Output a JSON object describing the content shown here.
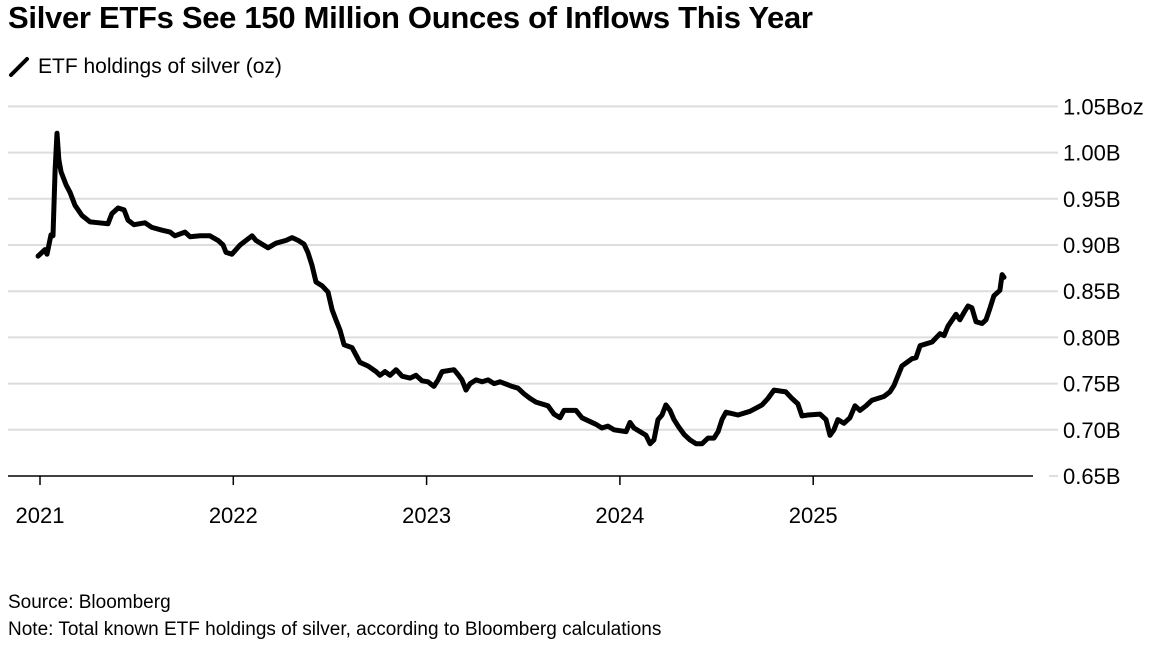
{
  "title": "Silver ETFs See 150 Million Ounces of Inflows This Year",
  "legend": {
    "label": "ETF holdings of silver (oz)",
    "icon": "line-swatch-icon"
  },
  "source": "Source: Bloomberg",
  "note": "Note: Total known ETF holdings of silver, according to Bloomberg calculations",
  "chart_data": {
    "type": "line",
    "title": "Silver ETFs See 150 Million Ounces of Inflows This Year",
    "xlabel": "",
    "ylabel": "",
    "x_unit": "year",
    "xlim": [
      2020.98,
      2026.14
    ],
    "ylim": [
      0.65,
      1.05
    ],
    "x_ticks": [
      2021,
      2022,
      2023,
      2024,
      2025
    ],
    "x_tick_labels": [
      "2021",
      "2022",
      "2023",
      "2024",
      "2025"
    ],
    "y_ticks": [
      0.65,
      0.7,
      0.75,
      0.8,
      0.85,
      0.9,
      0.95,
      1.0,
      1.05
    ],
    "y_tick_labels": [
      "0.65B",
      "0.70B",
      "0.75B",
      "0.80B",
      "0.85B",
      "0.90B",
      "0.95B",
      "1.00B",
      "1.05Boz"
    ],
    "grid": "horizontal",
    "legend_position": "top-left",
    "line_color": "#000000",
    "grid_color": "#dddddd",
    "series": [
      {
        "name": "ETF holdings of silver (oz)",
        "unit": "billion oz",
        "points": [
          [
            2020.99,
            0.888
          ],
          [
            2021.026,
            0.895
          ],
          [
            2021.036,
            0.89
          ],
          [
            2021.057,
            0.911
          ],
          [
            2021.067,
            0.91
          ],
          [
            2021.078,
            0.981
          ],
          [
            2021.088,
            1.021
          ],
          [
            2021.098,
            0.992
          ],
          [
            2021.109,
            0.979
          ],
          [
            2021.135,
            0.965
          ],
          [
            2021.155,
            0.957
          ],
          [
            2021.181,
            0.943
          ],
          [
            2021.217,
            0.932
          ],
          [
            2021.259,
            0.925
          ],
          [
            2021.305,
            0.924
          ],
          [
            2021.352,
            0.923
          ],
          [
            2021.372,
            0.934
          ],
          [
            2021.404,
            0.94
          ],
          [
            2021.435,
            0.938
          ],
          [
            2021.455,
            0.927
          ],
          [
            2021.486,
            0.922
          ],
          [
            2021.543,
            0.924
          ],
          [
            2021.579,
            0.919
          ],
          [
            2021.631,
            0.916
          ],
          [
            2021.673,
            0.914
          ],
          [
            2021.698,
            0.91
          ],
          [
            2021.75,
            0.914
          ],
          [
            2021.776,
            0.909
          ],
          [
            2021.828,
            0.91
          ],
          [
            2021.879,
            0.91
          ],
          [
            2021.921,
            0.905
          ],
          [
            2021.947,
            0.9
          ],
          [
            2021.962,
            0.892
          ],
          [
            2021.993,
            0.89
          ],
          [
            2022.035,
            0.9
          ],
          [
            2022.066,
            0.905
          ],
          [
            2022.097,
            0.91
          ],
          [
            2022.117,
            0.905
          ],
          [
            2022.148,
            0.901
          ],
          [
            2022.18,
            0.897
          ],
          [
            2022.221,
            0.902
          ],
          [
            2022.273,
            0.905
          ],
          [
            2022.304,
            0.908
          ],
          [
            2022.335,
            0.905
          ],
          [
            2022.366,
            0.901
          ],
          [
            2022.386,
            0.892
          ],
          [
            2022.407,
            0.878
          ],
          [
            2022.428,
            0.86
          ],
          [
            2022.459,
            0.856
          ],
          [
            2022.49,
            0.849
          ],
          [
            2022.511,
            0.83
          ],
          [
            2022.531,
            0.819
          ],
          [
            2022.552,
            0.808
          ],
          [
            2022.573,
            0.792
          ],
          [
            2022.614,
            0.789
          ],
          [
            2022.635,
            0.781
          ],
          [
            2022.655,
            0.773
          ],
          [
            2022.697,
            0.769
          ],
          [
            2022.738,
            0.763
          ],
          [
            2022.759,
            0.759
          ],
          [
            2022.785,
            0.763
          ],
          [
            2022.811,
            0.759
          ],
          [
            2022.842,
            0.765
          ],
          [
            2022.873,
            0.758
          ],
          [
            2022.914,
            0.756
          ],
          [
            2022.945,
            0.759
          ],
          [
            2022.976,
            0.753
          ],
          [
            2023.007,
            0.752
          ],
          [
            2023.038,
            0.747
          ],
          [
            2023.059,
            0.754
          ],
          [
            2023.08,
            0.763
          ],
          [
            2023.142,
            0.765
          ],
          [
            2023.162,
            0.76
          ],
          [
            2023.183,
            0.754
          ],
          [
            2023.204,
            0.743
          ],
          [
            2023.225,
            0.75
          ],
          [
            2023.256,
            0.754
          ],
          [
            2023.287,
            0.752
          ],
          [
            2023.318,
            0.754
          ],
          [
            2023.349,
            0.75
          ],
          [
            2023.38,
            0.752
          ],
          [
            2023.442,
            0.747
          ],
          [
            2023.473,
            0.745
          ],
          [
            2023.504,
            0.739
          ],
          [
            2023.535,
            0.734
          ],
          [
            2023.566,
            0.73
          ],
          [
            2023.628,
            0.726
          ],
          [
            2023.659,
            0.717
          ],
          [
            2023.69,
            0.713
          ],
          [
            2023.711,
            0.721
          ],
          [
            2023.773,
            0.721
          ],
          [
            2023.804,
            0.713
          ],
          [
            2023.876,
            0.706
          ],
          [
            2023.907,
            0.702
          ],
          [
            2023.938,
            0.704
          ],
          [
            2023.969,
            0.7
          ],
          [
            2024.032,
            0.698
          ],
          [
            2024.052,
            0.708
          ],
          [
            2024.073,
            0.702
          ],
          [
            2024.135,
            0.694
          ],
          [
            2024.156,
            0.685
          ],
          [
            2024.176,
            0.689
          ],
          [
            2024.197,
            0.711
          ],
          [
            2024.218,
            0.716
          ],
          [
            2024.238,
            0.727
          ],
          [
            2024.259,
            0.721
          ],
          [
            2024.28,
            0.711
          ],
          [
            2024.301,
            0.704
          ],
          [
            2024.332,
            0.695
          ],
          [
            2024.363,
            0.689
          ],
          [
            2024.394,
            0.685
          ],
          [
            2024.425,
            0.685
          ],
          [
            2024.456,
            0.691
          ],
          [
            2024.487,
            0.691
          ],
          [
            2024.508,
            0.698
          ],
          [
            2024.528,
            0.711
          ],
          [
            2024.549,
            0.719
          ],
          [
            2024.611,
            0.716
          ],
          [
            2024.673,
            0.72
          ],
          [
            2024.735,
            0.727
          ],
          [
            2024.766,
            0.734
          ],
          [
            2024.797,
            0.743
          ],
          [
            2024.859,
            0.741
          ],
          [
            2024.89,
            0.734
          ],
          [
            2024.921,
            0.728
          ],
          [
            2024.942,
            0.715
          ],
          [
            2024.973,
            0.716
          ],
          [
            2025.035,
            0.717
          ],
          [
            2025.066,
            0.711
          ],
          [
            2025.087,
            0.694
          ],
          [
            2025.107,
            0.7
          ],
          [
            2025.128,
            0.711
          ],
          [
            2025.159,
            0.707
          ],
          [
            2025.19,
            0.713
          ],
          [
            2025.216,
            0.726
          ],
          [
            2025.242,
            0.721
          ],
          [
            2025.273,
            0.726
          ],
          [
            2025.304,
            0.732
          ],
          [
            2025.366,
            0.736
          ],
          [
            2025.397,
            0.741
          ],
          [
            2025.418,
            0.748
          ],
          [
            2025.439,
            0.759
          ],
          [
            2025.459,
            0.769
          ],
          [
            2025.511,
            0.777
          ],
          [
            2025.532,
            0.778
          ],
          [
            2025.553,
            0.791
          ],
          [
            2025.615,
            0.795
          ],
          [
            2025.656,
            0.804
          ],
          [
            2025.677,
            0.802
          ],
          [
            2025.697,
            0.812
          ],
          [
            2025.739,
            0.825
          ],
          [
            2025.759,
            0.819
          ],
          [
            2025.78,
            0.827
          ],
          [
            2025.801,
            0.834
          ],
          [
            2025.821,
            0.832
          ],
          [
            2025.842,
            0.817
          ],
          [
            2025.873,
            0.815
          ],
          [
            2025.894,
            0.819
          ],
          [
            2025.915,
            0.832
          ],
          [
            2025.935,
            0.845
          ],
          [
            2025.966,
            0.851
          ],
          [
            2025.977,
            0.868
          ],
          [
            2025.987,
            0.865
          ]
        ]
      }
    ]
  }
}
